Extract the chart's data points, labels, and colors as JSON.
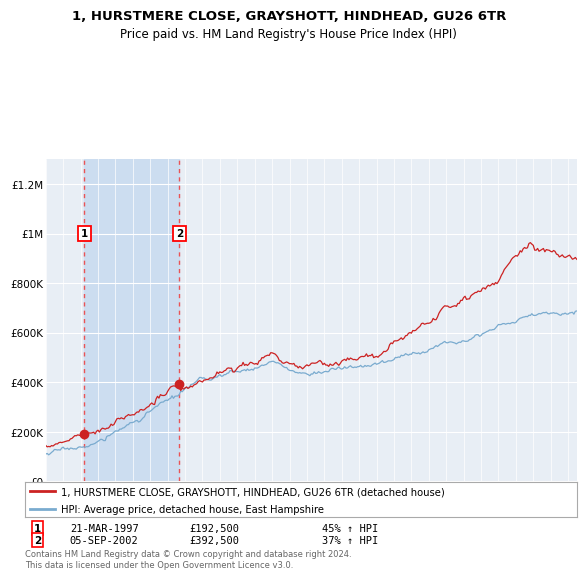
{
  "title1": "1, HURSTMERE CLOSE, GRAYSHOTT, HINDHEAD, GU26 6TR",
  "title2": "Price paid vs. HM Land Registry's House Price Index (HPI)",
  "legend_line1": "1, HURSTMERE CLOSE, GRAYSHOTT, HINDHEAD, GU26 6TR (detached house)",
  "legend_line2": "HPI: Average price, detached house, East Hampshire",
  "sale1_label": "1",
  "sale1_date": "21-MAR-1997",
  "sale1_price": "£192,500",
  "sale1_hpi": "45% ↑ HPI",
  "sale1_year": 1997.22,
  "sale1_value": 192500,
  "sale2_label": "2",
  "sale2_date": "05-SEP-2002",
  "sale2_price": "£392,500",
  "sale2_hpi": "37% ↑ HPI",
  "sale2_year": 2002.67,
  "sale2_value": 392500,
  "xmin": 1995.0,
  "xmax": 2025.5,
  "ymin": 0,
  "ymax": 1300000,
  "yticks": [
    0,
    200000,
    400000,
    600000,
    800000,
    1000000,
    1200000
  ],
  "ytick_labels": [
    "£0",
    "£200K",
    "£400K",
    "£600K",
    "£800K",
    "£1M",
    "£1.2M"
  ],
  "background_color": "#ffffff",
  "plot_bg_color": "#e8eef5",
  "shade_color": "#ccddf0",
  "grid_color": "#ffffff",
  "red_line_color": "#cc2222",
  "blue_line_color": "#7aabcf",
  "footnote": "Contains HM Land Registry data © Crown copyright and database right 2024.\nThis data is licensed under the Open Government Licence v3.0."
}
